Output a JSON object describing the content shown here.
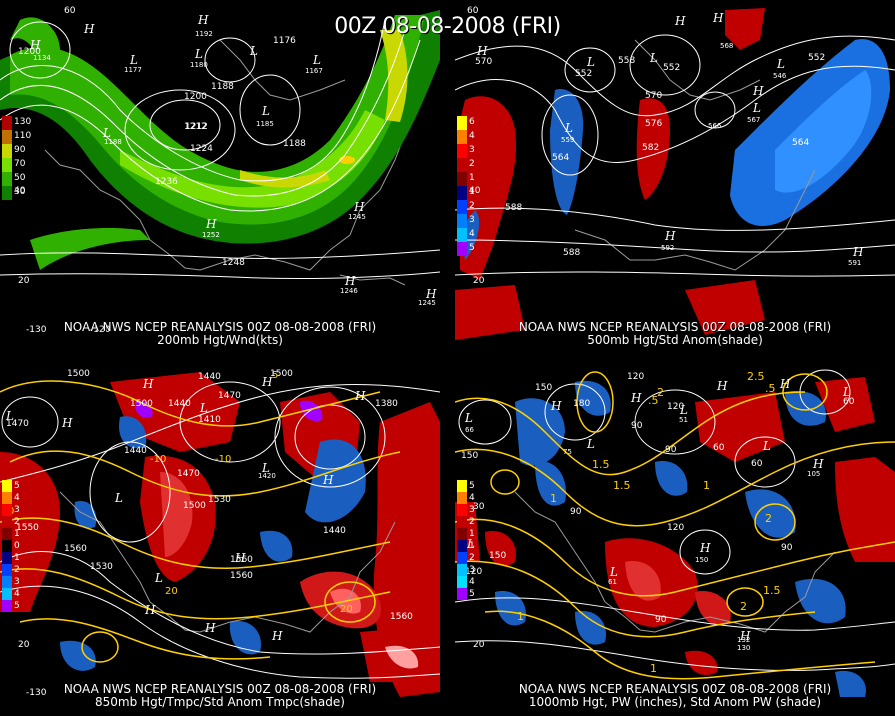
{
  "banner": "00Z 08-08-2008 (FRI)",
  "panels": [
    {
      "caption_line1": "NOAA NWS NCEP REANALYSIS 00Z 08-08-2008 (FRI)",
      "caption_line2": "200mb Hgt/Wnd(kts)",
      "legend": [
        {
          "label": "130",
          "color": "#b00000"
        },
        {
          "label": "110",
          "color": "#e06000"
        },
        {
          "label": "90",
          "color": "#c8d800"
        },
        {
          "label": "70",
          "color": "#78e000"
        },
        {
          "label": "50",
          "color": "#30b000"
        },
        {
          "label": "30",
          "color": "#108000"
        }
      ],
      "lat_labels": [
        "60",
        "40",
        "20",
        "-130",
        "-120"
      ]
    },
    {
      "caption_line1": "NOAA NWS NCEP REANALYSIS 00Z 08-08-2008 (FRI)",
      "caption_line2": "500mb Hgt/Std Anom(shade)",
      "legend": [
        {
          "label": "6",
          "color": "#ffff00"
        },
        {
          "label": "4",
          "color": "#ff8000"
        },
        {
          "label": "3",
          "color": "#ff0000"
        },
        {
          "label": "2",
          "color": "#c00000"
        },
        {
          "label": "1",
          "color": "#800000"
        },
        {
          "label": "1",
          "color": "#000080"
        },
        {
          "label": "2",
          "color": "#0040ff"
        },
        {
          "label": "3",
          "color": "#0080ff"
        },
        {
          "label": "4",
          "color": "#00c0ff"
        },
        {
          "label": "5",
          "color": "#a000ff"
        }
      ],
      "lat_labels": [
        "60",
        "40",
        "20"
      ]
    },
    {
      "caption_line1": "NOAA NWS NCEP REANALYSIS 00Z 08-08-2008 (FRI)",
      "caption_line2": "850mb Hgt/Tmpc/Std Anom Tmpc(shade)",
      "legend": [
        {
          "label": "5",
          "color": "#ffff00"
        },
        {
          "label": "4",
          "color": "#ff8000"
        },
        {
          "label": "3",
          "color": "#ff0000"
        },
        {
          "label": "2",
          "color": "#c00000"
        },
        {
          "label": "1",
          "color": "#800000"
        },
        {
          "label": "0",
          "color": "#000000"
        },
        {
          "label": "1",
          "color": "#000080"
        },
        {
          "label": "2",
          "color": "#0040ff"
        },
        {
          "label": "3",
          "color": "#0080ff"
        },
        {
          "label": "4",
          "color": "#00c0ff"
        },
        {
          "label": "5",
          "color": "#a000ff"
        }
      ],
      "lat_labels": [
        "20",
        "-130"
      ]
    },
    {
      "caption_line1": "NOAA NWS NCEP REANALYSIS 00Z 08-08-2008 (FRI)",
      "caption_line2": "1000mb Hgt, PW (inches), Std Anom PW (shade)",
      "legend": [
        {
          "label": "5",
          "color": "#ffff00"
        },
        {
          "label": "4",
          "color": "#ff8000"
        },
        {
          "label": "3",
          "color": "#ff0000"
        },
        {
          "label": "2",
          "color": "#c00000"
        },
        {
          "label": "1",
          "color": "#800000"
        },
        {
          "label": "1",
          "color": "#000080"
        },
        {
          "label": "2",
          "color": "#0040ff"
        },
        {
          "label": "3",
          "color": "#00c0ff"
        },
        {
          "label": "4",
          "color": "#00e0ff"
        },
        {
          "label": "5",
          "color": "#a000ff"
        }
      ],
      "lat_labels": [
        "20",
        "30"
      ]
    }
  ],
  "map_labels": {
    "p1": {
      "heights": [
        "1200",
        "1134",
        "1212",
        "1177",
        "1180",
        "1192",
        "1176",
        "1167",
        "1200",
        "1188",
        "1212",
        "1224",
        "1188",
        "1236",
        "1185",
        "1188",
        "1252",
        "1248",
        "1245",
        "1245",
        "1246"
      ],
      "pressure_centers": [
        "H",
        "H",
        "H",
        "L",
        "L",
        "L",
        "L",
        "H",
        "H",
        "H",
        "L",
        "H",
        "L"
      ]
    },
    "p2": {
      "heights": [
        "570",
        "564",
        "552",
        "558",
        "552",
        "568",
        "552",
        "546",
        "570",
        "576",
        "582",
        "559",
        "564",
        "566",
        "567",
        "588",
        "588",
        "592",
        "591"
      ],
      "pressure_centers": [
        "H",
        "L",
        "L",
        "H",
        "H",
        "L",
        "L",
        "L",
        "H",
        "H",
        "H"
      ]
    },
    "p3": {
      "heights": [
        "1500",
        "1440",
        "1500",
        "1470",
        "1440",
        "1410",
        "1470",
        "1380",
        "1470",
        "1500",
        "1530",
        "1560",
        "1550",
        "1530",
        "1440",
        "1560",
        "1440",
        "1420",
        "1560",
        "1560",
        "1500"
      ],
      "temps": [
        "5",
        "-10",
        "-10",
        "5",
        "20",
        "20",
        "0"
      ],
      "pressure_centers": [
        "H",
        "H",
        "H",
        "L",
        "L",
        "L",
        "H",
        "L",
        "H",
        "H",
        "H",
        "H",
        "L",
        "H"
      ]
    },
    "p4": {
      "heights": [
        "150",
        "120",
        "150",
        "180",
        "90",
        "60",
        "60",
        "90",
        "120",
        "150",
        "90",
        "120",
        "90",
        "60",
        "105",
        "130",
        "90",
        "120",
        "150",
        "66",
        "75",
        "61",
        "51",
        "132"
      ],
      "pw": [
        "2.5",
        "1.5",
        ".5",
        "1",
        "1.5",
        "2",
        "1.5",
        "1",
        "2",
        "1",
        "2",
        "1",
        ".5"
      ],
      "pressure_centers": [
        "H",
        "H",
        "H",
        "L",
        "L",
        "L",
        "L",
        "H",
        "L",
        "H",
        "L",
        "H",
        "H",
        "L"
      ]
    }
  },
  "colors": {
    "background": "#000000",
    "contour_white": "#ffffff",
    "contour_yellow": "#ffd000",
    "coast_gray": "#9a9a9a",
    "pos_anom": "#c00000",
    "neg_anom": "#1a5fc0"
  }
}
